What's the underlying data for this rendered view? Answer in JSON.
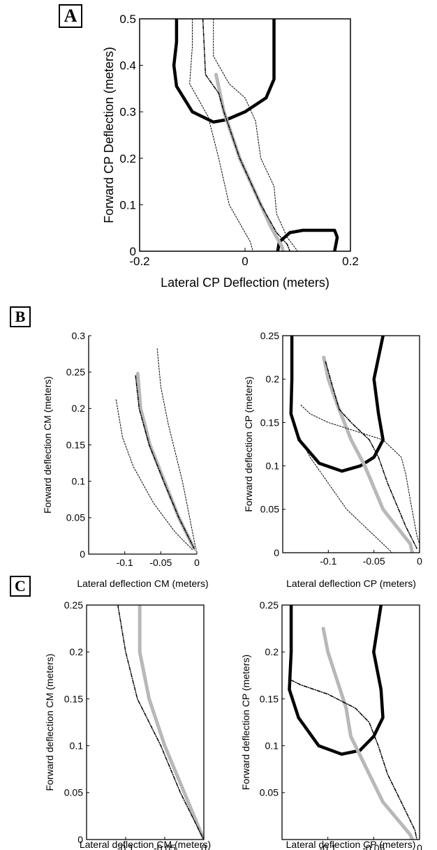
{
  "panel_labels": {
    "a": "A",
    "b": "B",
    "c": "C"
  },
  "chart_data": [
    {
      "id": "A",
      "type": "line",
      "xlabel": "Lateral CP Deflection (meters)",
      "ylabel": "Forward CP Deflection (meters)",
      "xlim": [
        -0.2,
        0.2
      ],
      "ylim": [
        0,
        0.5
      ],
      "xticks": [
        -0.2,
        0,
        0.2
      ],
      "xtick_labels": [
        "-0.2",
        "0",
        "0.2"
      ],
      "yticks": [
        0,
        0.1,
        0.2,
        0.3,
        0.4,
        0.5
      ],
      "ytick_labels": [
        "0",
        "0.1",
        "0.2",
        "0.3",
        "0.4",
        "0.5"
      ],
      "grid": false,
      "legend": "none",
      "series": [
        {
          "style": "boundary",
          "values": [
            [
              -0.13,
              0.5
            ],
            [
              -0.13,
              0.45
            ],
            [
              -0.135,
              0.4
            ],
            [
              -0.13,
              0.355
            ],
            [
              -0.1,
              0.3
            ],
            [
              -0.06,
              0.278
            ],
            [
              -0.035,
              0.283
            ],
            [
              0,
              0.3
            ],
            [
              0.04,
              0.33
            ],
            [
              0.055,
              0.37
            ],
            [
              0.055,
              0.42
            ],
            [
              0.055,
              0.5
            ]
          ]
        },
        {
          "style": "boundary",
          "values": [
            [
              0.062,
              0
            ],
            [
              0.065,
              0.02
            ],
            [
              0.085,
              0.04
            ],
            [
              0.11,
              0.045
            ],
            [
              0.17,
              0.045
            ],
            [
              0.175,
              0.03
            ],
            [
              0.17,
              0
            ]
          ]
        },
        {
          "style": "gray",
          "values": [
            [
              -0.055,
              0.38
            ],
            [
              -0.04,
              0.3
            ],
            [
              -0.01,
              0.2
            ],
            [
              0.03,
              0.1
            ],
            [
              0.05,
              0.05
            ],
            [
              0.07,
              0.01
            ],
            [
              0.072,
              0
            ]
          ]
        },
        {
          "style": "dashed",
          "values": [
            [
              -0.08,
              0.5
            ],
            [
              -0.075,
              0.38
            ],
            [
              -0.05,
              0.34
            ],
            [
              -0.04,
              0.3
            ],
            [
              -0.01,
              0.2
            ],
            [
              0.03,
              0.1
            ],
            [
              0.06,
              0.04
            ],
            [
              0.08,
              0.015
            ],
            [
              0.085,
              0
            ]
          ]
        },
        {
          "style": "thin",
          "values": [
            [
              -0.1,
              0.5
            ],
            [
              -0.1,
              0.44
            ],
            [
              -0.105,
              0.36
            ],
            [
              -0.09,
              0.33
            ],
            [
              -0.07,
              0.29
            ],
            [
              -0.05,
              0.2
            ],
            [
              -0.03,
              0.1
            ],
            [
              0.01,
              0.02
            ],
            [
              0.015,
              0
            ]
          ]
        },
        {
          "style": "thin",
          "values": [
            [
              -0.06,
              0.5
            ],
            [
              -0.06,
              0.42
            ],
            [
              -0.03,
              0.36
            ],
            [
              0,
              0.33
            ],
            [
              0.02,
              0.28
            ],
            [
              0.03,
              0.2
            ],
            [
              0.055,
              0.14
            ],
            [
              0.06,
              0.08
            ],
            [
              0.08,
              0.03
            ],
            [
              0.1,
              0
            ]
          ]
        }
      ]
    },
    {
      "id": "B-left",
      "type": "line",
      "xlabel": "Lateral deflection CM (meters)",
      "ylabel": "Forward deflection CM (meters)",
      "xlim": [
        -0.15,
        0
      ],
      "ylim": [
        0,
        0.3
      ],
      "xticks": [
        -0.1,
        -0.05,
        0
      ],
      "xtick_labels": [
        "-0.1",
        "-0.05",
        "0"
      ],
      "yticks": [
        0,
        0.05,
        0.1,
        0.15,
        0.2,
        0.25,
        0.3
      ],
      "ytick_labels": [
        "0",
        "0.05",
        "0.1",
        "0.15",
        "0.2",
        "0.25",
        "0.3"
      ],
      "grid": false,
      "legend": "none",
      "frame": "left-bottom",
      "series": [
        {
          "style": "gray",
          "values": [
            [
              -0.082,
              0.248
            ],
            [
              -0.078,
              0.2
            ],
            [
              -0.065,
              0.15
            ],
            [
              -0.045,
              0.1
            ],
            [
              -0.025,
              0.05
            ],
            [
              -0.005,
              0.01
            ],
            [
              0,
              0.005
            ]
          ]
        },
        {
          "style": "dashed",
          "values": [
            [
              -0.085,
              0.245
            ],
            [
              -0.08,
              0.2
            ],
            [
              -0.066,
              0.15
            ],
            [
              -0.046,
              0.1
            ],
            [
              -0.025,
              0.05
            ],
            [
              -0.004,
              0.008
            ]
          ]
        },
        {
          "style": "thin",
          "values": [
            [
              -0.112,
              0.212
            ],
            [
              -0.103,
              0.16
            ],
            [
              -0.088,
              0.12
            ],
            [
              -0.06,
              0.07
            ],
            [
              -0.03,
              0.03
            ],
            [
              -0.005,
              0.005
            ]
          ]
        },
        {
          "style": "thin",
          "values": [
            [
              -0.055,
              0.282
            ],
            [
              -0.05,
              0.23
            ],
            [
              -0.04,
              0.18
            ],
            [
              -0.03,
              0.14
            ],
            [
              -0.02,
              0.1
            ],
            [
              -0.01,
              0.05
            ],
            [
              -0.002,
              0.01
            ]
          ]
        }
      ]
    },
    {
      "id": "B-right",
      "type": "line",
      "xlabel": "Lateral deflection CP (meters)",
      "ylabel": "Forward deflection CP (meters)",
      "xlim": [
        -0.15,
        0
      ],
      "ylim": [
        0,
        0.25
      ],
      "xticks": [
        -0.1,
        -0.05,
        0
      ],
      "xtick_labels": [
        "-0.1",
        "-0.05",
        "0"
      ],
      "yticks": [
        0,
        0.05,
        0.1,
        0.15,
        0.2,
        0.25
      ],
      "ytick_labels": [
        "0",
        "0.05",
        "0.1",
        "0.15",
        "0.2",
        "0.25"
      ],
      "grid": false,
      "legend": "none",
      "series": [
        {
          "style": "boundary",
          "values": [
            [
              -0.14,
              0.25
            ],
            [
              -0.14,
              0.2
            ],
            [
              -0.141,
              0.16
            ],
            [
              -0.132,
              0.13
            ],
            [
              -0.11,
              0.103
            ],
            [
              -0.085,
              0.094
            ],
            [
              -0.065,
              0.1
            ],
            [
              -0.05,
              0.11
            ],
            [
              -0.04,
              0.13
            ],
            [
              -0.045,
              0.16
            ],
            [
              -0.05,
              0.2
            ],
            [
              -0.04,
              0.25
            ]
          ]
        },
        {
          "style": "gray",
          "values": [
            [
              -0.105,
              0.225
            ],
            [
              -0.1,
              0.2
            ],
            [
              -0.09,
              0.17
            ],
            [
              -0.075,
              0.13
            ],
            [
              -0.06,
              0.1
            ],
            [
              -0.04,
              0.05
            ],
            [
              -0.01,
              0.01
            ],
            [
              -0.008,
              0
            ]
          ]
        },
        {
          "style": "dashed",
          "values": [
            [
              -0.103,
              0.22
            ],
            [
              -0.095,
              0.19
            ],
            [
              -0.088,
              0.165
            ],
            [
              -0.075,
              0.15
            ],
            [
              -0.055,
              0.13
            ],
            [
              -0.045,
              0.11
            ],
            [
              -0.035,
              0.08
            ],
            [
              -0.015,
              0.03
            ],
            [
              -0.003,
              0.005
            ]
          ]
        },
        {
          "style": "thin",
          "values": [
            [
              -0.13,
              0.17
            ],
            [
              -0.12,
              0.16
            ],
            [
              -0.1,
              0.15
            ],
            [
              -0.07,
              0.14
            ],
            [
              -0.04,
              0.13
            ],
            [
              -0.02,
              0.11
            ],
            [
              -0.015,
              0.09
            ],
            [
              -0.01,
              0.06
            ],
            [
              -0.003,
              0.02
            ],
            [
              0,
              0.01
            ]
          ]
        },
        {
          "style": "thin",
          "values": [
            [
              -0.14,
              0.16
            ],
            [
              -0.135,
              0.14
            ],
            [
              -0.12,
              0.11
            ],
            [
              -0.1,
              0.08
            ],
            [
              -0.08,
              0.05
            ],
            [
              -0.05,
              0.02
            ],
            [
              -0.035,
              0.005
            ],
            [
              -0.03,
              0
            ]
          ]
        }
      ]
    },
    {
      "id": "C-left",
      "type": "line",
      "xlabel": "Lateral deflection CM (meters)",
      "ylabel": "Forward deflection CM (meters)",
      "xlim": [
        -0.15,
        0
      ],
      "ylim": [
        0,
        0.25
      ],
      "xticks": [
        -0.1,
        -0.05,
        0
      ],
      "xtick_labels": [
        "-0.1",
        "-0.05",
        "0"
      ],
      "yticks": [
        0,
        0.05,
        0.1,
        0.15,
        0.2,
        0.25
      ],
      "ytick_labels": [
        "0",
        "0.05",
        "0.1",
        "0.15",
        "0.2",
        "0.25"
      ],
      "grid": false,
      "legend": "none",
      "series": [
        {
          "style": "gray",
          "values": [
            [
              -0.082,
              0.25
            ],
            [
              -0.082,
              0.2
            ],
            [
              -0.07,
              0.15
            ],
            [
              -0.05,
              0.1
            ],
            [
              -0.025,
              0.05
            ],
            [
              -0.005,
              0.01
            ],
            [
              0,
              0
            ]
          ]
        },
        {
          "style": "dashed",
          "values": [
            [
              -0.11,
              0.25
            ],
            [
              -0.1,
              0.2
            ],
            [
              -0.085,
              0.15
            ],
            [
              -0.055,
              0.1
            ],
            [
              -0.03,
              0.05
            ],
            [
              -0.005,
              0.008
            ],
            [
              0,
              0
            ]
          ]
        }
      ]
    },
    {
      "id": "C-right",
      "type": "line",
      "xlabel": "Lateral deflection CP (meters)",
      "ylabel": "Forward deflection CP (meters)",
      "xlim": [
        -0.15,
        0
      ],
      "ylim": [
        0,
        0.25
      ],
      "xticks": [
        -0.1,
        -0.05,
        0
      ],
      "xtick_labels": [
        "-0.1",
        "-0.05",
        "0"
      ],
      "yticks": [
        0.05,
        0.1,
        0.15,
        0.2,
        0.25
      ],
      "ytick_labels": [
        "0.05",
        "0.1",
        "0.15",
        "0.2",
        "0.25"
      ],
      "grid": false,
      "legend": "none",
      "series": [
        {
          "style": "boundary",
          "values": [
            [
              -0.14,
              0.25
            ],
            [
              -0.14,
              0.2
            ],
            [
              -0.142,
              0.16
            ],
            [
              -0.132,
              0.13
            ],
            [
              -0.11,
              0.1
            ],
            [
              -0.085,
              0.091
            ],
            [
              -0.065,
              0.095
            ],
            [
              -0.05,
              0.11
            ],
            [
              -0.04,
              0.13
            ],
            [
              -0.042,
              0.16
            ],
            [
              -0.05,
              0.2
            ],
            [
              -0.042,
              0.25
            ]
          ]
        },
        {
          "style": "gray",
          "values": [
            [
              -0.105,
              0.225
            ],
            [
              -0.1,
              0.2
            ],
            [
              -0.09,
              0.17
            ],
            [
              -0.08,
              0.14
            ],
            [
              -0.075,
              0.11
            ],
            [
              -0.06,
              0.08
            ],
            [
              -0.04,
              0.04
            ],
            [
              -0.01,
              0.005
            ],
            [
              -0.008,
              0
            ]
          ]
        },
        {
          "style": "dashed",
          "values": [
            [
              -0.14,
              0.17
            ],
            [
              -0.13,
              0.165
            ],
            [
              -0.1,
              0.155
            ],
            [
              -0.07,
              0.14
            ],
            [
              -0.055,
              0.125
            ],
            [
              -0.045,
              0.1
            ],
            [
              -0.035,
              0.07
            ],
            [
              -0.02,
              0.04
            ],
            [
              -0.005,
              0.01
            ],
            [
              -0.003,
              0
            ]
          ]
        }
      ]
    }
  ]
}
